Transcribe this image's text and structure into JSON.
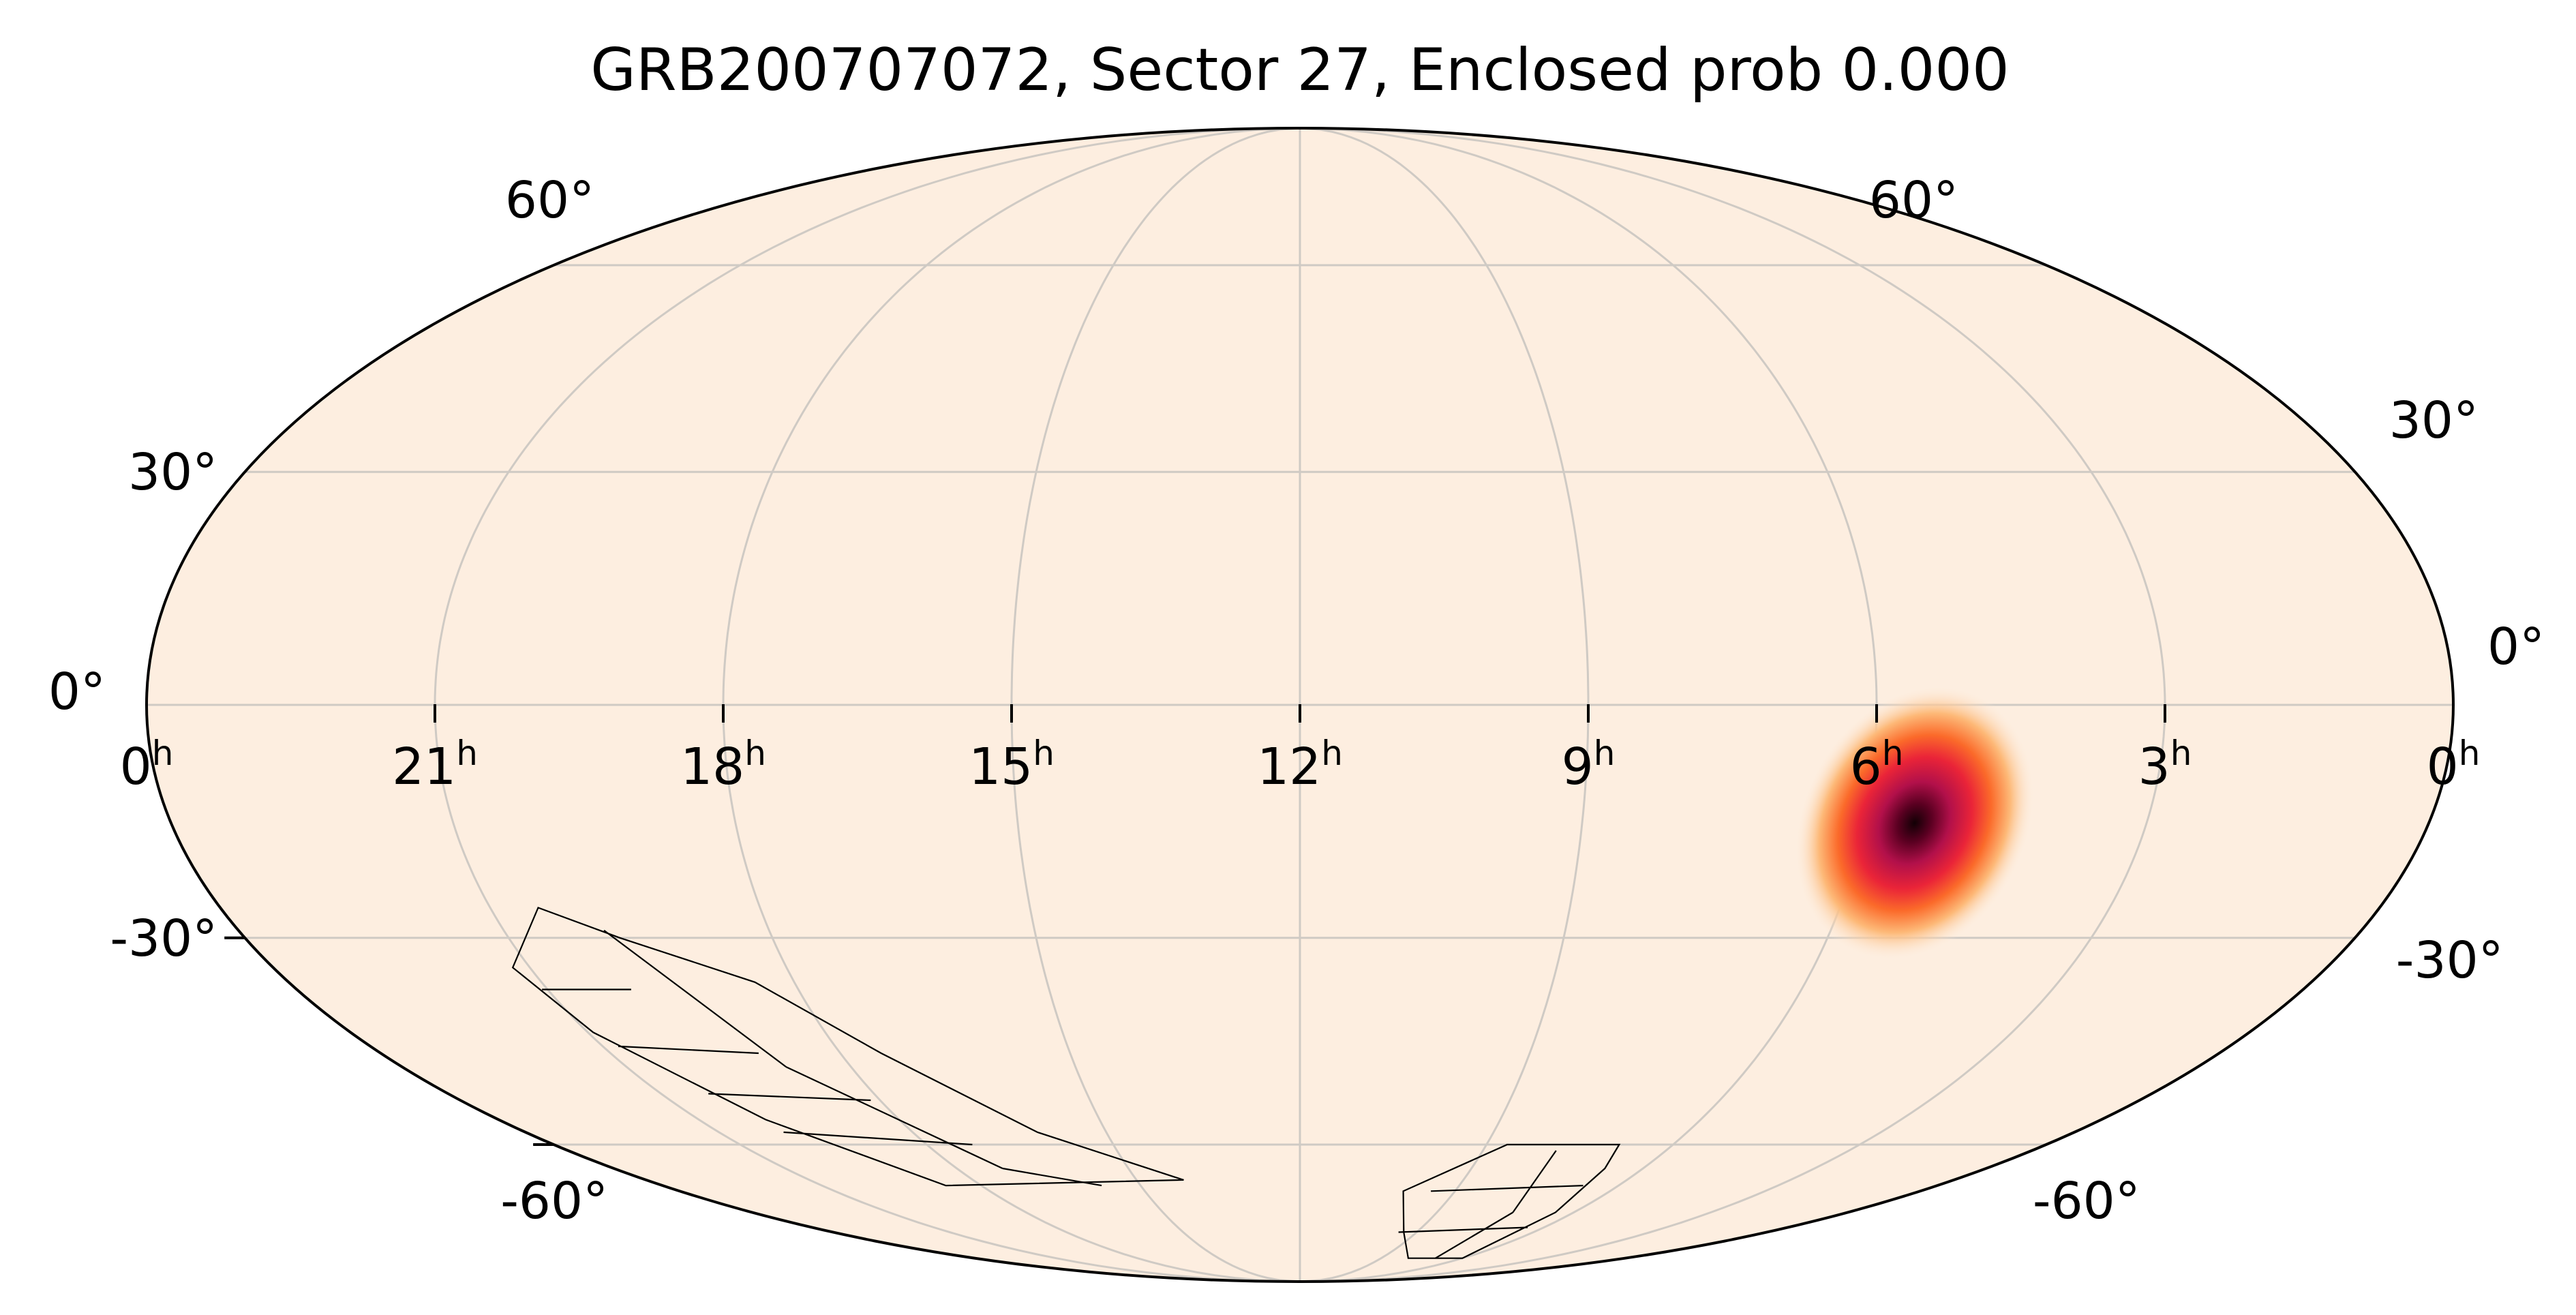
{
  "title": "GRB200707072, Sector 27, Enclosed prob 0.000",
  "projection": "mollweide",
  "ra_ticks": [
    {
      "label": "0",
      "sup": "h",
      "ra": 360
    },
    {
      "label": "21",
      "sup": "h",
      "ra": 315
    },
    {
      "label": "18",
      "sup": "h",
      "ra": 270
    },
    {
      "label": "15",
      "sup": "h",
      "ra": 225
    },
    {
      "label": "12",
      "sup": "h",
      "ra": 180
    },
    {
      "label": "9",
      "sup": "h",
      "ra": 135
    },
    {
      "label": "6",
      "sup": "h",
      "ra": 90
    },
    {
      "label": "3",
      "sup": "h",
      "ra": 45
    },
    {
      "label": "0",
      "sup": "h",
      "ra": 0
    }
  ],
  "dec_ticks_left": [
    {
      "label": "60°",
      "dec": 60
    },
    {
      "label": "30°",
      "dec": 30
    },
    {
      "label": "0°",
      "dec": 0
    },
    {
      "label": "-30°",
      "dec": -30
    },
    {
      "label": "-60°",
      "dec": -60
    }
  ],
  "dec_ticks_right": [
    {
      "label": "60°",
      "dec": 60
    },
    {
      "label": "30°",
      "dec": 30
    },
    {
      "label": "0°",
      "dec": 0
    },
    {
      "label": "-30°",
      "dec": -30
    },
    {
      "label": "-60°",
      "dec": -60
    }
  ],
  "colors": {
    "background": "#fdeee0",
    "grid": "#cfcac4",
    "outline": "#000000"
  },
  "probability_peak": {
    "ra": 82,
    "dec": -15,
    "sigma_deg": 7
  },
  "tess_footprints": [
    [
      [
        307,
        -26
      ],
      [
        296,
        -30
      ],
      [
        277,
        -36
      ],
      [
        262,
        -46
      ],
      [
        241,
        -58
      ],
      [
        212,
        -66
      ],
      [
        280,
        -67
      ],
      [
        300,
        -56
      ],
      [
        314,
        -43
      ],
      [
        318,
        -34
      ]
    ],
    [
      [
        103,
        -60
      ],
      [
        100,
        -64
      ],
      [
        96,
        -72
      ],
      [
        90,
        -82
      ],
      [
        120,
        -82
      ],
      [
        140,
        -76
      ],
      [
        150,
        -68
      ],
      [
        130,
        -60
      ]
    ]
  ]
}
